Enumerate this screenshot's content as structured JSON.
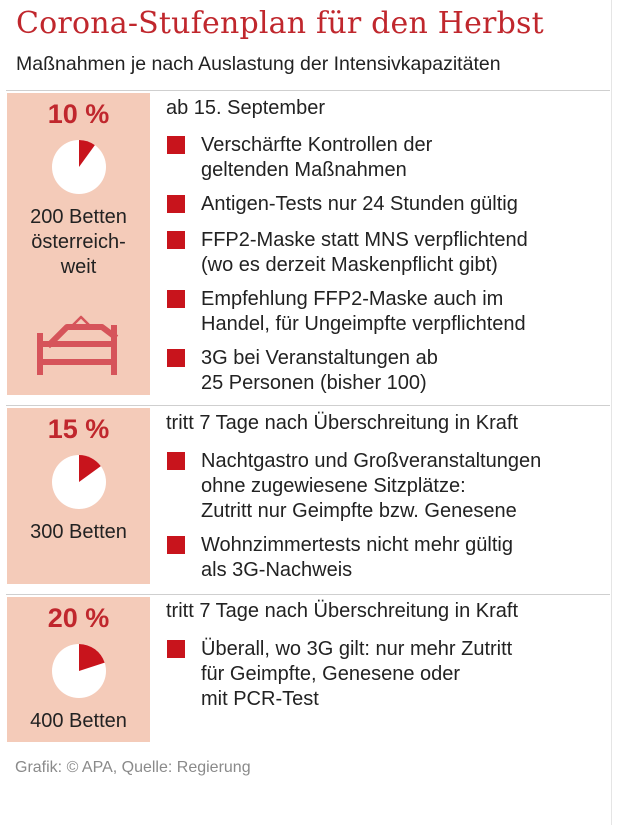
{
  "title": "Corona-Stufenplan für den Herbst",
  "subtitle": "Maßnahmen je nach Auslastung der Intensivkapazitäten",
  "stages": [
    {
      "percent_label": "10 %",
      "pie_fraction": 0.1,
      "beds_lines": [
        "200 Betten",
        "österreich-",
        "weit"
      ],
      "bed_icon": "hospital-bed-icon",
      "heading": "ab 15. September",
      "measures": [
        [
          "Verschärfte Kontrollen der",
          "geltenden Maßnahmen"
        ],
        [
          "Antigen-Tests nur 24 Stunden gültig"
        ],
        [
          "FFP2-Maske statt MNS verpflichtend",
          "(wo es derzeit Maskenpflicht gibt)"
        ],
        [
          "Empfehlung FFP2-Maske auch im",
          "Handel, für Ungeimpfte verpflichtend"
        ],
        [
          "3G bei Veranstaltungen ab",
          "25 Personen (bisher 100)"
        ]
      ]
    },
    {
      "percent_label": "15 %",
      "pie_fraction": 0.15,
      "beds_lines": [
        "300 Betten"
      ],
      "heading": "tritt 7 Tage nach Überschreitung in Kraft",
      "measures": [
        [
          "Nachtgastro und Großveranstaltungen",
          "ohne zugewiesene Sitzplätze:",
          "Zutritt nur Geimpfte bzw. Genesene"
        ],
        [
          "Wohnzimmertests nicht mehr gültig",
          "als 3G-Nachweis"
        ]
      ]
    },
    {
      "percent_label": "20 %",
      "pie_fraction": 0.2,
      "beds_lines": [
        "400 Betten"
      ],
      "heading": "tritt 7 Tage nach Überschreitung in Kraft",
      "measures": [
        [
          "Überall, wo 3G gilt: nur mehr Zutritt",
          "für Geimpfte, Genesene oder",
          "mit PCR-Test"
        ]
      ]
    }
  ],
  "footer": "Grafik: © APA, Quelle: Regierung",
  "colors": {
    "accent": "#c0272d",
    "bullet": "#c8141c",
    "panel": "#f4cbb9",
    "bed_icon": "#d6545a"
  }
}
